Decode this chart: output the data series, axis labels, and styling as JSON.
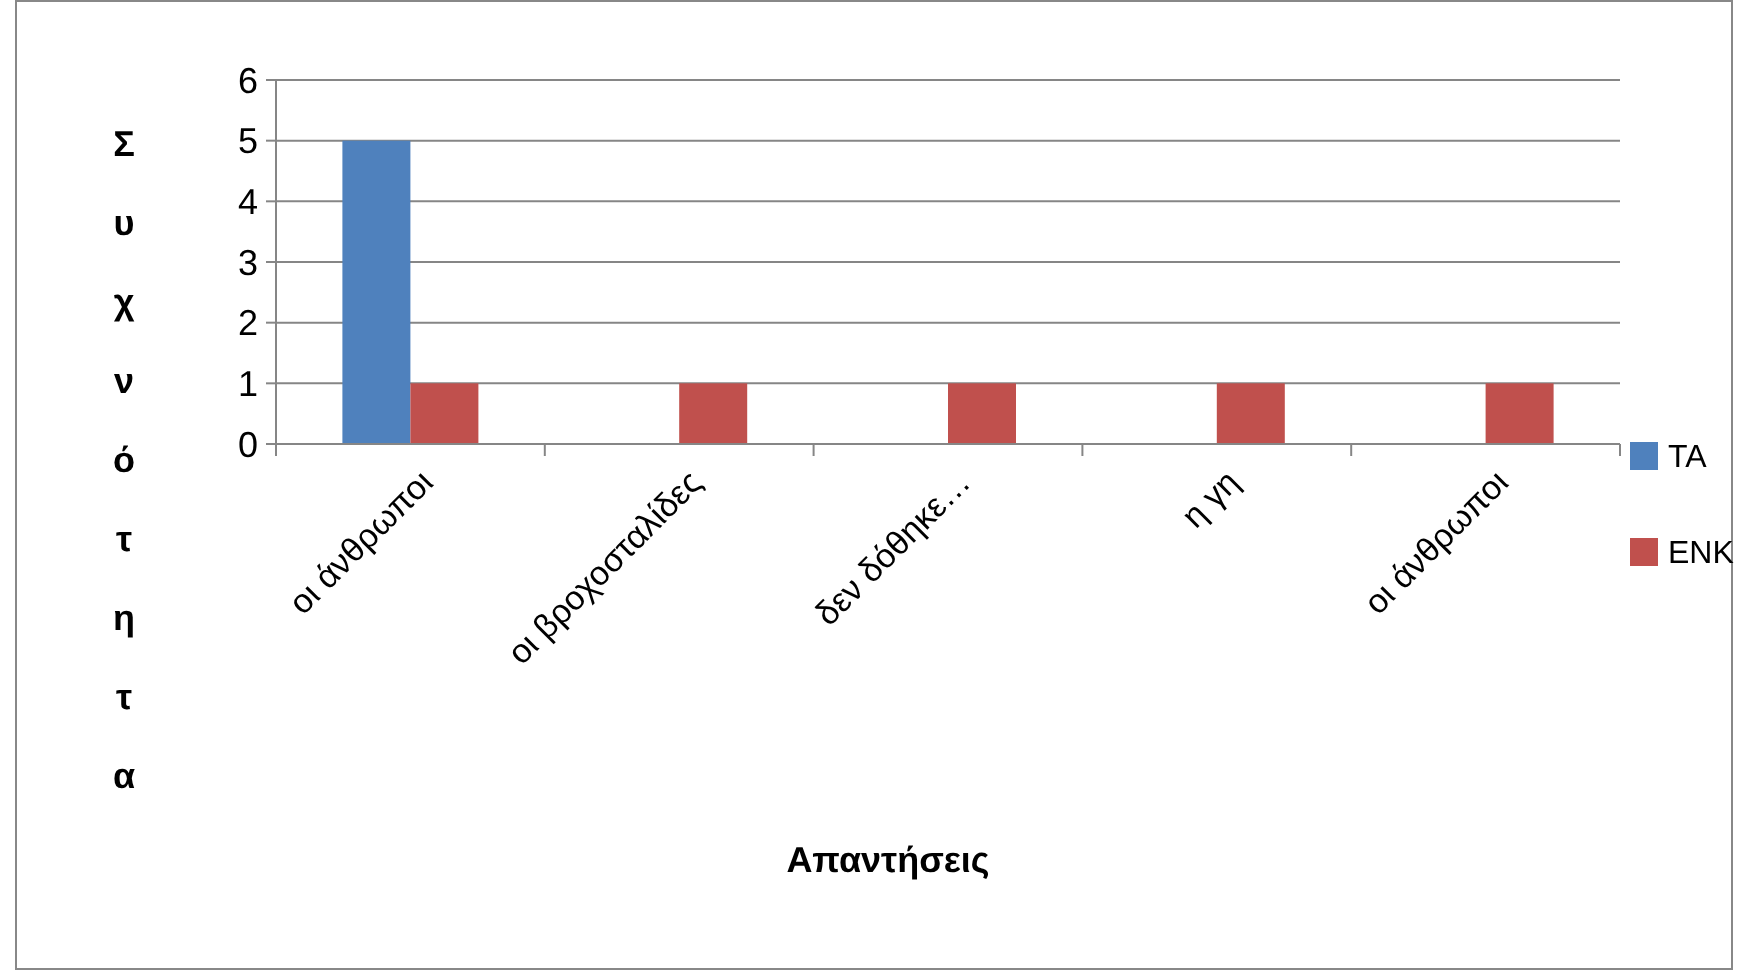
{
  "chart_data": {
    "type": "bar",
    "xlabel": "Απαντήσεις",
    "ylabel": "Συχνότητα",
    "categories": [
      "οι άνθρωποι",
      "οι βροχοσταλίδες",
      "δεν δόθηκε…",
      "η γη",
      "οι άνθρωποι"
    ],
    "series": [
      {
        "name": "ΤΑ",
        "color": "#4f81bd",
        "values": [
          5,
          null,
          null,
          null,
          null
        ]
      },
      {
        "name": "ΕΝΚ",
        "color": "#c0504d",
        "values": [
          1,
          1,
          1,
          1,
          1
        ]
      }
    ],
    "ylim": [
      0,
      6
    ],
    "yticks": [
      0,
      1,
      2,
      3,
      4,
      5,
      6
    ],
    "grid": "y",
    "legend": "right"
  }
}
